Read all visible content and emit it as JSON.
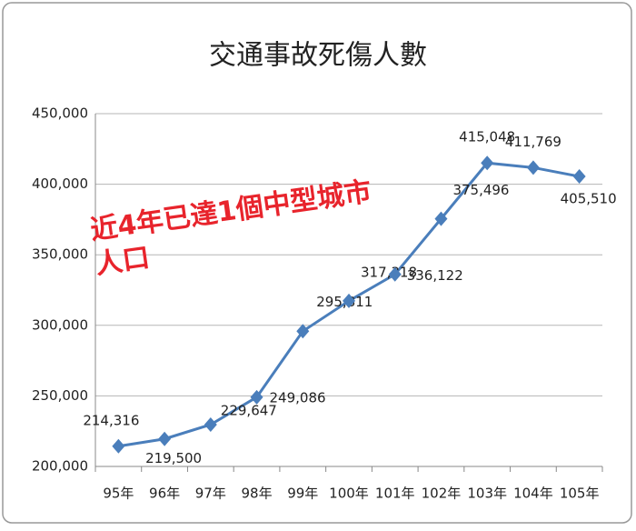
{
  "chart_data": {
    "type": "line",
    "title": "交通事故死傷人數",
    "categories": [
      "95年",
      "96年",
      "97年",
      "98年",
      "99年",
      "100年",
      "101年",
      "102年",
      "103年",
      "104年",
      "105年"
    ],
    "series": [
      {
        "name": "交通事故死傷人數",
        "color": "#4a7ebb",
        "values": [
          214316,
          219500,
          229647,
          249086,
          295811,
          317318,
          336122,
          375496,
          415048,
          411769,
          405510
        ],
        "value_labels": [
          "214,316",
          "219,500",
          "229,647",
          "249,086",
          "295,811",
          "317,318",
          "336,122",
          "375,496",
          "415,048",
          "411,769",
          "405,510"
        ]
      }
    ],
    "ylim": [
      200000,
      450000
    ],
    "yticks": [
      {
        "value": 200000,
        "label": "200,000"
      },
      {
        "value": 250000,
        "label": "250,000"
      },
      {
        "value": 300000,
        "label": "300,000"
      },
      {
        "value": 350000,
        "label": "350,000"
      },
      {
        "value": 400000,
        "label": "400,000"
      },
      {
        "value": 450000,
        "label": "450,000"
      }
    ],
    "grid": true,
    "annotation": [
      "近4年已達1個中型城市",
      "人口"
    ],
    "annotation_color": "#e8242c"
  }
}
